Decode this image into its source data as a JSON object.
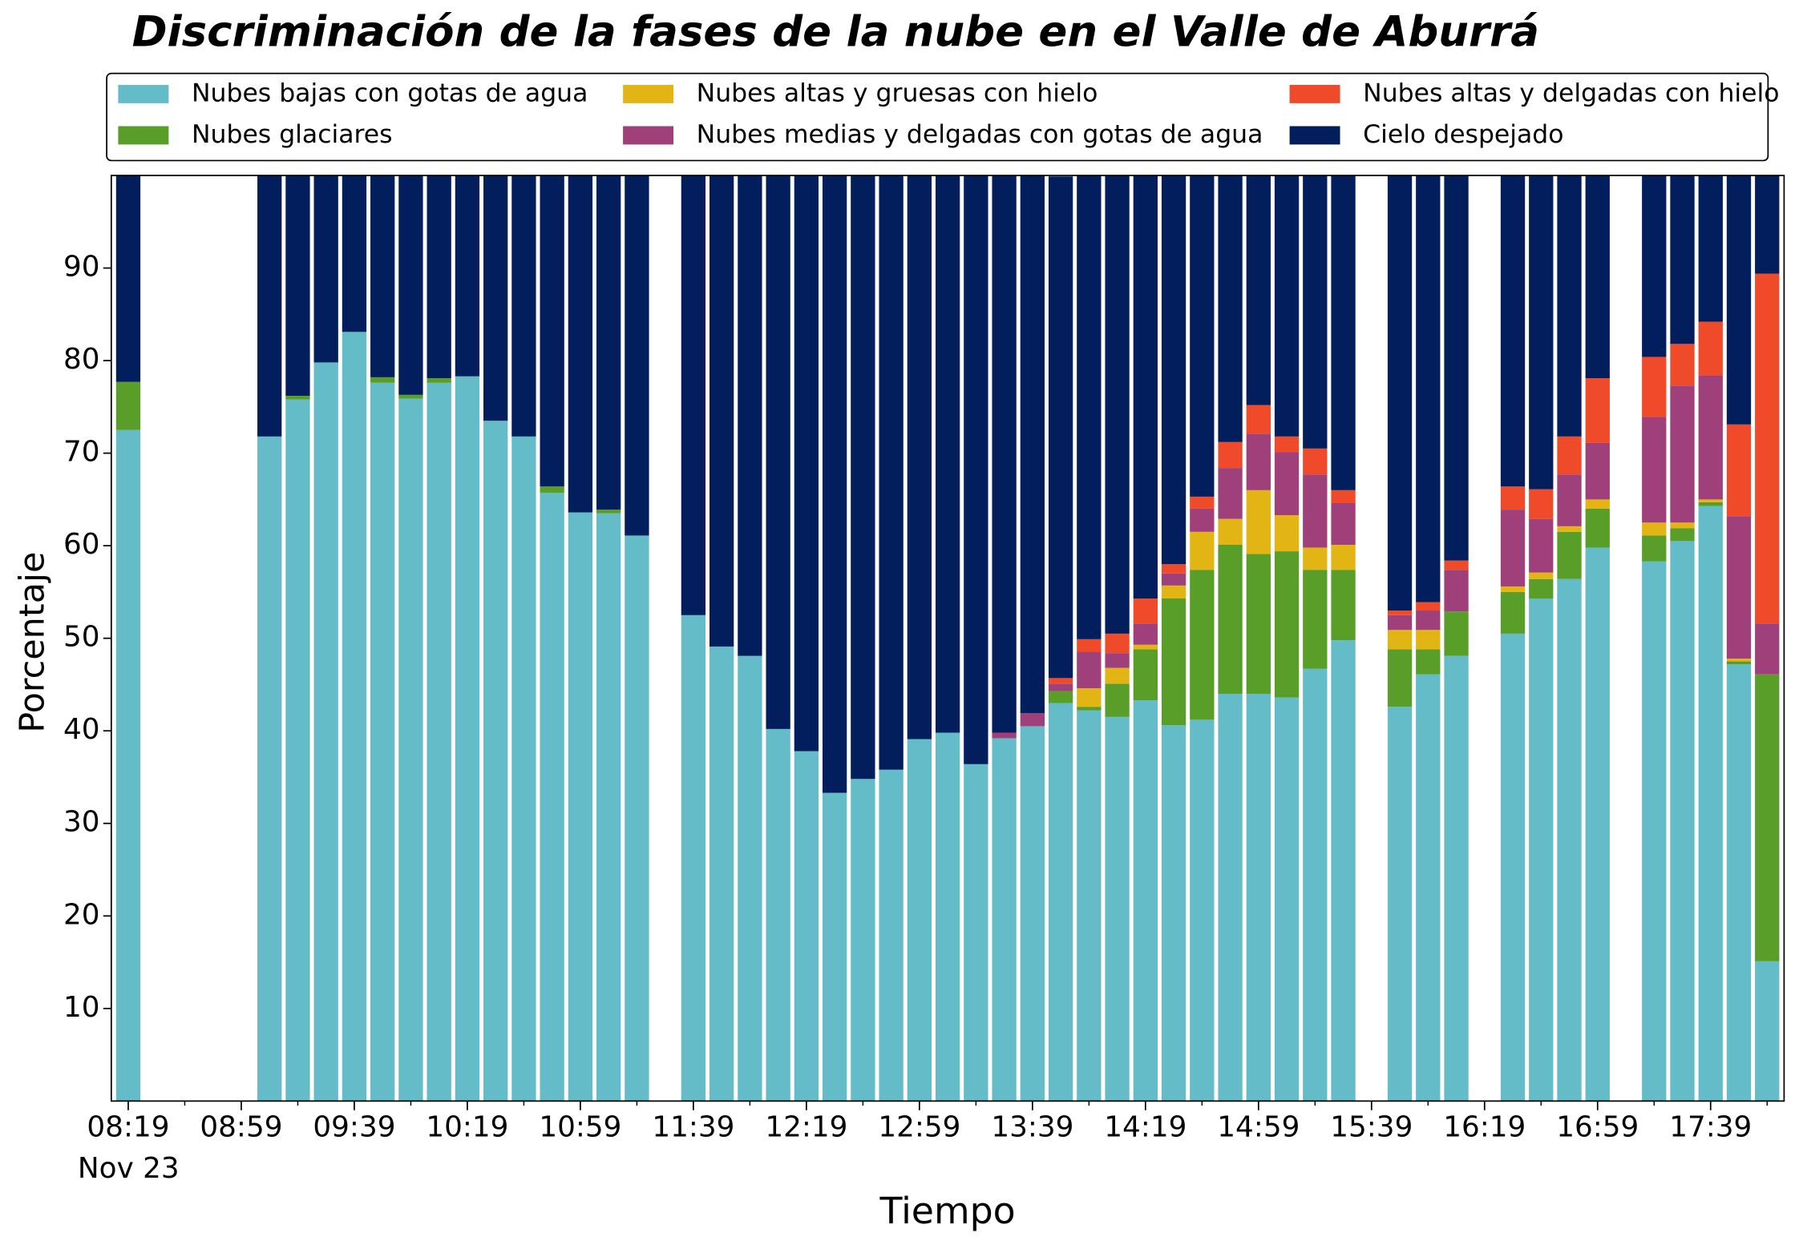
{
  "chart_data": {
    "type": "stacked_bar",
    "title": "Discriminación de la fases de la nube en el Valle de Aburrá",
    "x_label": "Tiempo",
    "y_label": "Porcentaje",
    "date_label": "Nov 23",
    "categories": [
      "08:19",
      null,
      null,
      null,
      "08:59",
      null,
      null,
      null,
      "09:39",
      null,
      null,
      null,
      "10:19",
      null,
      null,
      null,
      "10:59",
      null,
      null,
      null,
      "11:39",
      null,
      null,
      null,
      "12:19",
      null,
      null,
      null,
      "12:59",
      null,
      null,
      null,
      "13:39",
      null,
      null,
      null,
      "14:19",
      null,
      null,
      null,
      "14:59",
      null,
      null,
      null,
      "15:39",
      null,
      null,
      null,
      "16:19",
      null,
      null,
      null,
      "16:59",
      null,
      null,
      null,
      "17:39",
      null,
      null
    ],
    "ylim": [
      0,
      100
    ],
    "yticks": [
      10,
      20,
      30,
      40,
      50,
      60,
      70,
      80,
      90
    ],
    "legend": "top",
    "series": [
      {
        "name": "Nubes bajas con gotas de agua",
        "color": "#63bcc8",
        "values": [
          72.5,
          null,
          null,
          null,
          null,
          71.8,
          75.8,
          79.8,
          83.1,
          77.6,
          75.9,
          77.6,
          78.3,
          73.5,
          71.8,
          65.7,
          63.6,
          63.5,
          61.1,
          null,
          52.5,
          49.1,
          48.1,
          40.2,
          37.8,
          33.3,
          34.8,
          35.8,
          39.1,
          39.8,
          36.4,
          39.2,
          40.5,
          43.0,
          42.2,
          41.5,
          43.3,
          40.6,
          41.2,
          44.0,
          44.0,
          43.6,
          46.7,
          49.8,
          null,
          42.6,
          46.1,
          48.1,
          null,
          50.5,
          54.3,
          56.4,
          59.8,
          null,
          58.3,
          60.5,
          64.3,
          47.2,
          15.1
        ]
      },
      {
        "name": "Nubes glaciares",
        "color": "#5a9e2a",
        "values": [
          5.2,
          null,
          null,
          null,
          null,
          0,
          0.4,
          0,
          0,
          0.6,
          0.4,
          0.5,
          0,
          0,
          0,
          0.7,
          0,
          0.4,
          0,
          null,
          0,
          0,
          0,
          0,
          0,
          0,
          0,
          0,
          0,
          0,
          0,
          0,
          0,
          1.3,
          0.4,
          3.6,
          5.5,
          13.7,
          16.2,
          16.1,
          15.1,
          15.8,
          10.7,
          7.6,
          null,
          6.2,
          2.7,
          4.8,
          null,
          4.5,
          2.1,
          5.1,
          4.2,
          null,
          2.8,
          1.4,
          0.4,
          0.3,
          31.0
        ]
      },
      {
        "name": "Nubes altas y gruesas con hielo",
        "color": "#e3b514",
        "values": [
          0,
          null,
          null,
          null,
          null,
          0,
          0,
          0,
          0,
          0,
          0,
          0,
          0,
          0,
          0,
          0,
          0,
          0,
          0,
          null,
          0,
          0,
          0,
          0,
          0,
          0,
          0,
          0,
          0,
          0,
          0,
          0,
          0,
          0,
          2.0,
          1.7,
          0.5,
          1.4,
          4.1,
          2.8,
          6.9,
          3.9,
          2.4,
          2.7,
          null,
          2.1,
          2.1,
          0,
          null,
          0.6,
          0.7,
          0.6,
          1.0,
          null,
          1.4,
          0.6,
          0.3,
          0.3,
          0
        ]
      },
      {
        "name": "Nubes medias y delgadas con gotas de agua",
        "color": "#a0407a",
        "values": [
          0,
          null,
          null,
          null,
          null,
          0,
          0,
          0,
          0,
          0,
          0,
          0,
          0,
          0,
          0,
          0,
          0,
          0,
          0,
          null,
          0,
          0,
          0,
          0,
          0,
          0,
          0,
          0,
          0,
          0,
          0,
          0.6,
          1.4,
          0.8,
          3.9,
          1.6,
          2.3,
          1.3,
          2.5,
          5.5,
          6.1,
          6.8,
          7.9,
          4.5,
          null,
          1.6,
          2.1,
          4.5,
          null,
          8.3,
          5.8,
          5.6,
          6.1,
          null,
          11.4,
          14.8,
          13.4,
          15.4,
          5.5
        ]
      },
      {
        "name": "Nubes altas y delgadas con hielo",
        "color": "#ef4a2a",
        "values": [
          0,
          null,
          null,
          null,
          null,
          0,
          0,
          0,
          0,
          0,
          0,
          0,
          0,
          0,
          0,
          0,
          0,
          0,
          0,
          null,
          0,
          0,
          0,
          0,
          0,
          0,
          0,
          0,
          0,
          0,
          0,
          0,
          0,
          0.6,
          1.4,
          2.1,
          2.7,
          1.0,
          1.3,
          2.8,
          3.1,
          1.7,
          2.8,
          1.4,
          null,
          0.5,
          0.9,
          1.0,
          null,
          2.5,
          3.2,
          4.1,
          7.0,
          null,
          6.5,
          4.5,
          5.8,
          9.9,
          37.8
        ]
      },
      {
        "name": "Cielo despejado",
        "color": "#031e5c",
        "values": [
          22.3,
          null,
          null,
          null,
          null,
          28.2,
          23.8,
          20.2,
          16.9,
          21.8,
          23.7,
          21.9,
          21.7,
          26.5,
          28.2,
          33.6,
          36.4,
          36.1,
          38.9,
          null,
          47.5,
          50.9,
          51.9,
          59.8,
          62.2,
          66.7,
          65.2,
          64.2,
          60.9,
          60.2,
          63.6,
          60.2,
          58.1,
          54.2,
          50.1,
          49.5,
          45.7,
          42.0,
          34.7,
          28.8,
          24.8,
          28.2,
          29.5,
          34.0,
          null,
          47.0,
          46.1,
          41.6,
          null,
          33.6,
          33.9,
          28.2,
          21.9,
          null,
          19.6,
          18.2,
          15.8,
          26.9,
          10.6
        ]
      }
    ]
  }
}
